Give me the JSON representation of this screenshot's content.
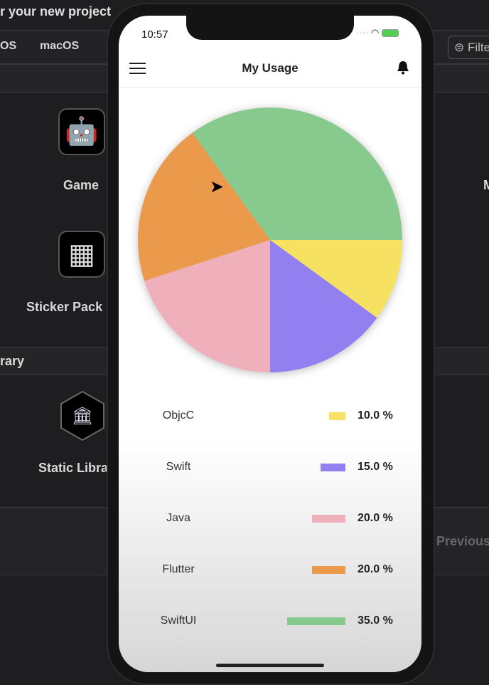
{
  "background": {
    "header_text": "r your new project",
    "platform_tabs": [
      "OS",
      "macOS"
    ],
    "filter_label": "Filter",
    "templates": [
      {
        "label": "Game",
        "icon": "game-icon"
      },
      {
        "label": "Sticker Pack",
        "icon": "grid-icon"
      },
      {
        "label": "Static Library",
        "icon": "library-icon"
      }
    ],
    "section_label": "rary",
    "right_partial": "M",
    "previous_label": "Previous"
  },
  "status_bar": {
    "time": "10:57"
  },
  "nav": {
    "title": "My Usage",
    "menu_icon": "hamburger-icon",
    "bell_icon": "bell-icon"
  },
  "chart_data": {
    "type": "pie",
    "categories": [
      "ObjcC",
      "Swift",
      "Java",
      "Flutter",
      "SwiftUI"
    ],
    "values": [
      10.0,
      15.0,
      20.0,
      20.0,
      35.0
    ],
    "colors": [
      "#f7e163",
      "#927ff0",
      "#efb0bb",
      "#eb9a4c",
      "#88c98d"
    ],
    "legend_placement": "bottom",
    "value_labels": [
      "10.0 %",
      "15.0 %",
      "20.0 %",
      "20.0 %",
      "35.0 %"
    ]
  }
}
